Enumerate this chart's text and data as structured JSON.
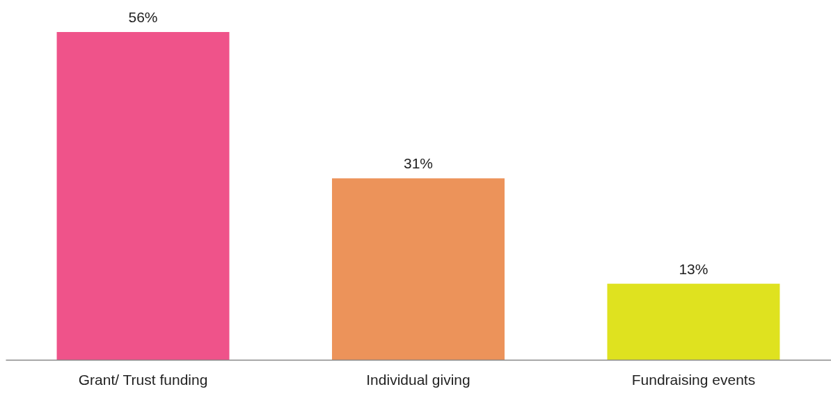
{
  "chart_data": {
    "type": "bar",
    "categories": [
      "Grant/ Trust funding",
      "Individual giving",
      "Fundraising events"
    ],
    "values": [
      56,
      31,
      13
    ],
    "value_labels": [
      "56%",
      "31%",
      "13%"
    ],
    "colors": [
      "#ef538a",
      "#ec935a",
      "#dfe21f"
    ]
  }
}
